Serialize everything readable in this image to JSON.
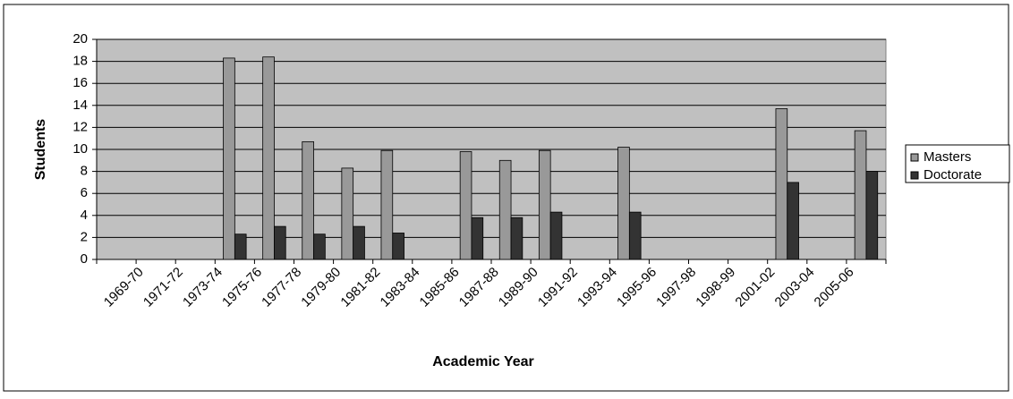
{
  "chart_data": {
    "type": "bar",
    "x_label": "Academic Year",
    "y_label": "Students",
    "categories": [
      null,
      "1969-70",
      "1971-72",
      "1973-74",
      "1975-76",
      "1977-78",
      "1979-80",
      "1981-82",
      "1983-84",
      "1985-86",
      "1987-88",
      "1989-90",
      "1991-92",
      "1993-94",
      "1995-96",
      "1997-98",
      "1998-99",
      "2001-02",
      "2003-04",
      "2005-06"
    ],
    "series": [
      {
        "name": "Masters",
        "color": "#999999",
        "values": [
          null,
          null,
          null,
          18.3,
          18.4,
          10.7,
          8.3,
          9.9,
          null,
          9.8,
          9.0,
          9.9,
          null,
          10.2,
          null,
          null,
          null,
          13.7,
          null,
          11.7
        ]
      },
      {
        "name": "Doctorate",
        "color": "#333333",
        "values": [
          null,
          null,
          null,
          2.3,
          3.0,
          2.3,
          3.0,
          2.4,
          null,
          3.8,
          3.8,
          4.3,
          null,
          4.3,
          null,
          null,
          null,
          7.0,
          null,
          8.0
        ]
      }
    ],
    "ylim": [
      0,
      20
    ],
    "yticks": [
      0,
      2,
      4,
      6,
      8,
      10,
      12,
      14,
      16,
      18,
      20
    ],
    "grid": true,
    "legend": "right"
  }
}
